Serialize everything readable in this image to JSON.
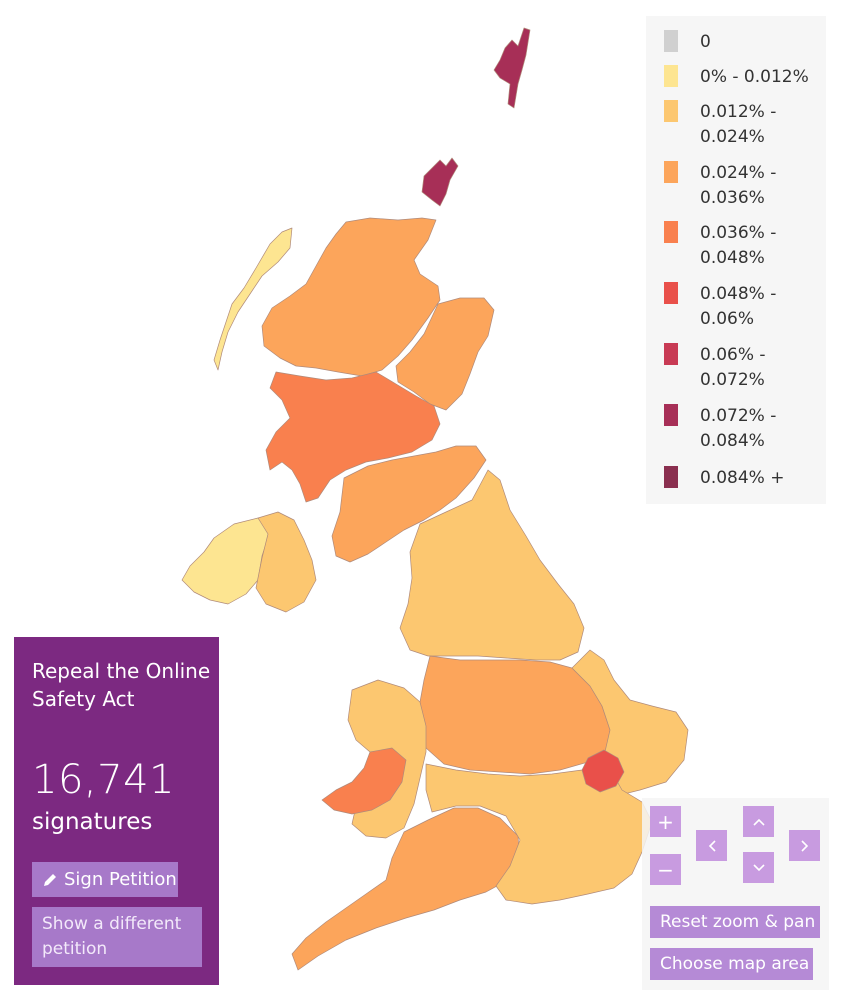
{
  "legend": {
    "items": [
      {
        "label": "0",
        "color": "#d0d0d0"
      },
      {
        "label": "0% - 0.012%",
        "color": "#fde591"
      },
      {
        "label": "0.012% - 0.024%",
        "color": "#fcc770"
      },
      {
        "label": "0.024% - 0.036%",
        "color": "#fca55b"
      },
      {
        "label": "0.036% - 0.048%",
        "color": "#f9804e"
      },
      {
        "label": "0.048% - 0.06%",
        "color": "#e9504a"
      },
      {
        "label": "0.06% - 0.072%",
        "color": "#c83a54"
      },
      {
        "label": "0.072% - 0.084%",
        "color": "#a72f57"
      },
      {
        "label": "0.084% +",
        "color": "#8a2f4f"
      }
    ]
  },
  "petition": {
    "title": "Repeal the Online Safety Act",
    "count": "16,741",
    "count_label": "signatures",
    "sign_label": "Sign Petition",
    "other_label": "Show a different petition"
  },
  "controls": {
    "zoom_in": "+",
    "zoom_out": "−",
    "pan_up": "^",
    "pan_down": "v",
    "pan_left": "<",
    "pan_right": ">",
    "reset_label": "Reset zoom & pan",
    "choose_label": "Choose map area"
  },
  "map": {
    "regions": [
      {
        "name": "shetland",
        "color": "#a72f57"
      },
      {
        "name": "orkney",
        "color": "#a72f57"
      },
      {
        "name": "western-isles",
        "color": "#fde591"
      },
      {
        "name": "highland",
        "color": "#fca55b"
      },
      {
        "name": "north-east-scotland",
        "color": "#fca55b"
      },
      {
        "name": "central-scotland",
        "color": "#f9804e"
      },
      {
        "name": "south-scotland",
        "color": "#fca55b"
      },
      {
        "name": "northern-ireland-west",
        "color": "#fde591"
      },
      {
        "name": "northern-ireland-east",
        "color": "#fcc770"
      },
      {
        "name": "north-england",
        "color": "#fcc770"
      },
      {
        "name": "midlands",
        "color": "#fca55b"
      },
      {
        "name": "wales",
        "color": "#fcc770"
      },
      {
        "name": "west-wales",
        "color": "#f9804e"
      },
      {
        "name": "east-england",
        "color": "#fcc770"
      },
      {
        "name": "south-west-england",
        "color": "#fca55b"
      },
      {
        "name": "south-east-england",
        "color": "#fcc770"
      },
      {
        "name": "cambridge",
        "color": "#e9504a"
      }
    ]
  }
}
